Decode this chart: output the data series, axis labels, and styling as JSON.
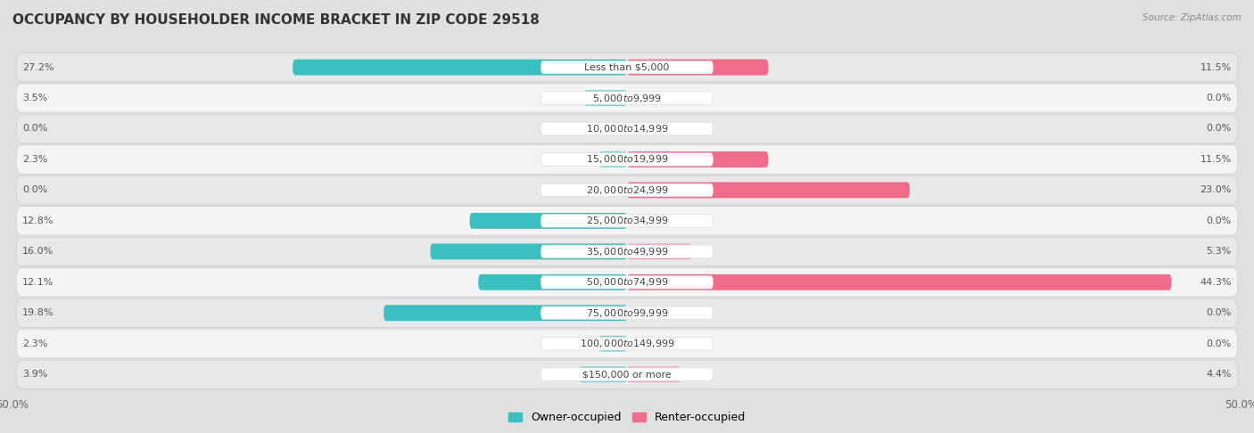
{
  "title": "OCCUPANCY BY HOUSEHOLDER INCOME BRACKET IN ZIP CODE 29518",
  "source": "Source: ZipAtlas.com",
  "categories": [
    "Less than $5,000",
    "$5,000 to $9,999",
    "$10,000 to $14,999",
    "$15,000 to $19,999",
    "$20,000 to $24,999",
    "$25,000 to $34,999",
    "$35,000 to $49,999",
    "$50,000 to $74,999",
    "$75,000 to $99,999",
    "$100,000 to $149,999",
    "$150,000 or more"
  ],
  "owner_values": [
    27.2,
    3.5,
    0.0,
    2.3,
    0.0,
    12.8,
    16.0,
    12.1,
    19.8,
    2.3,
    3.9
  ],
  "renter_values": [
    11.5,
    0.0,
    0.0,
    11.5,
    23.0,
    0.0,
    5.3,
    44.3,
    0.0,
    0.0,
    4.4
  ],
  "owner_color_dark": "#3BBFBF",
  "owner_color_light": "#7ED4D4",
  "renter_color_dark": "#EE6B8A",
  "renter_color_light": "#F4A8C0",
  "axis_limit": 50.0,
  "bar_height": 0.52,
  "title_fontsize": 11,
  "label_fontsize": 8,
  "value_fontsize": 8,
  "tick_fontsize": 8.5,
  "legend_fontsize": 9,
  "row_colors": [
    "#e8e8e8",
    "#f4f4f4"
  ],
  "bg_color": "#e0e0e0"
}
